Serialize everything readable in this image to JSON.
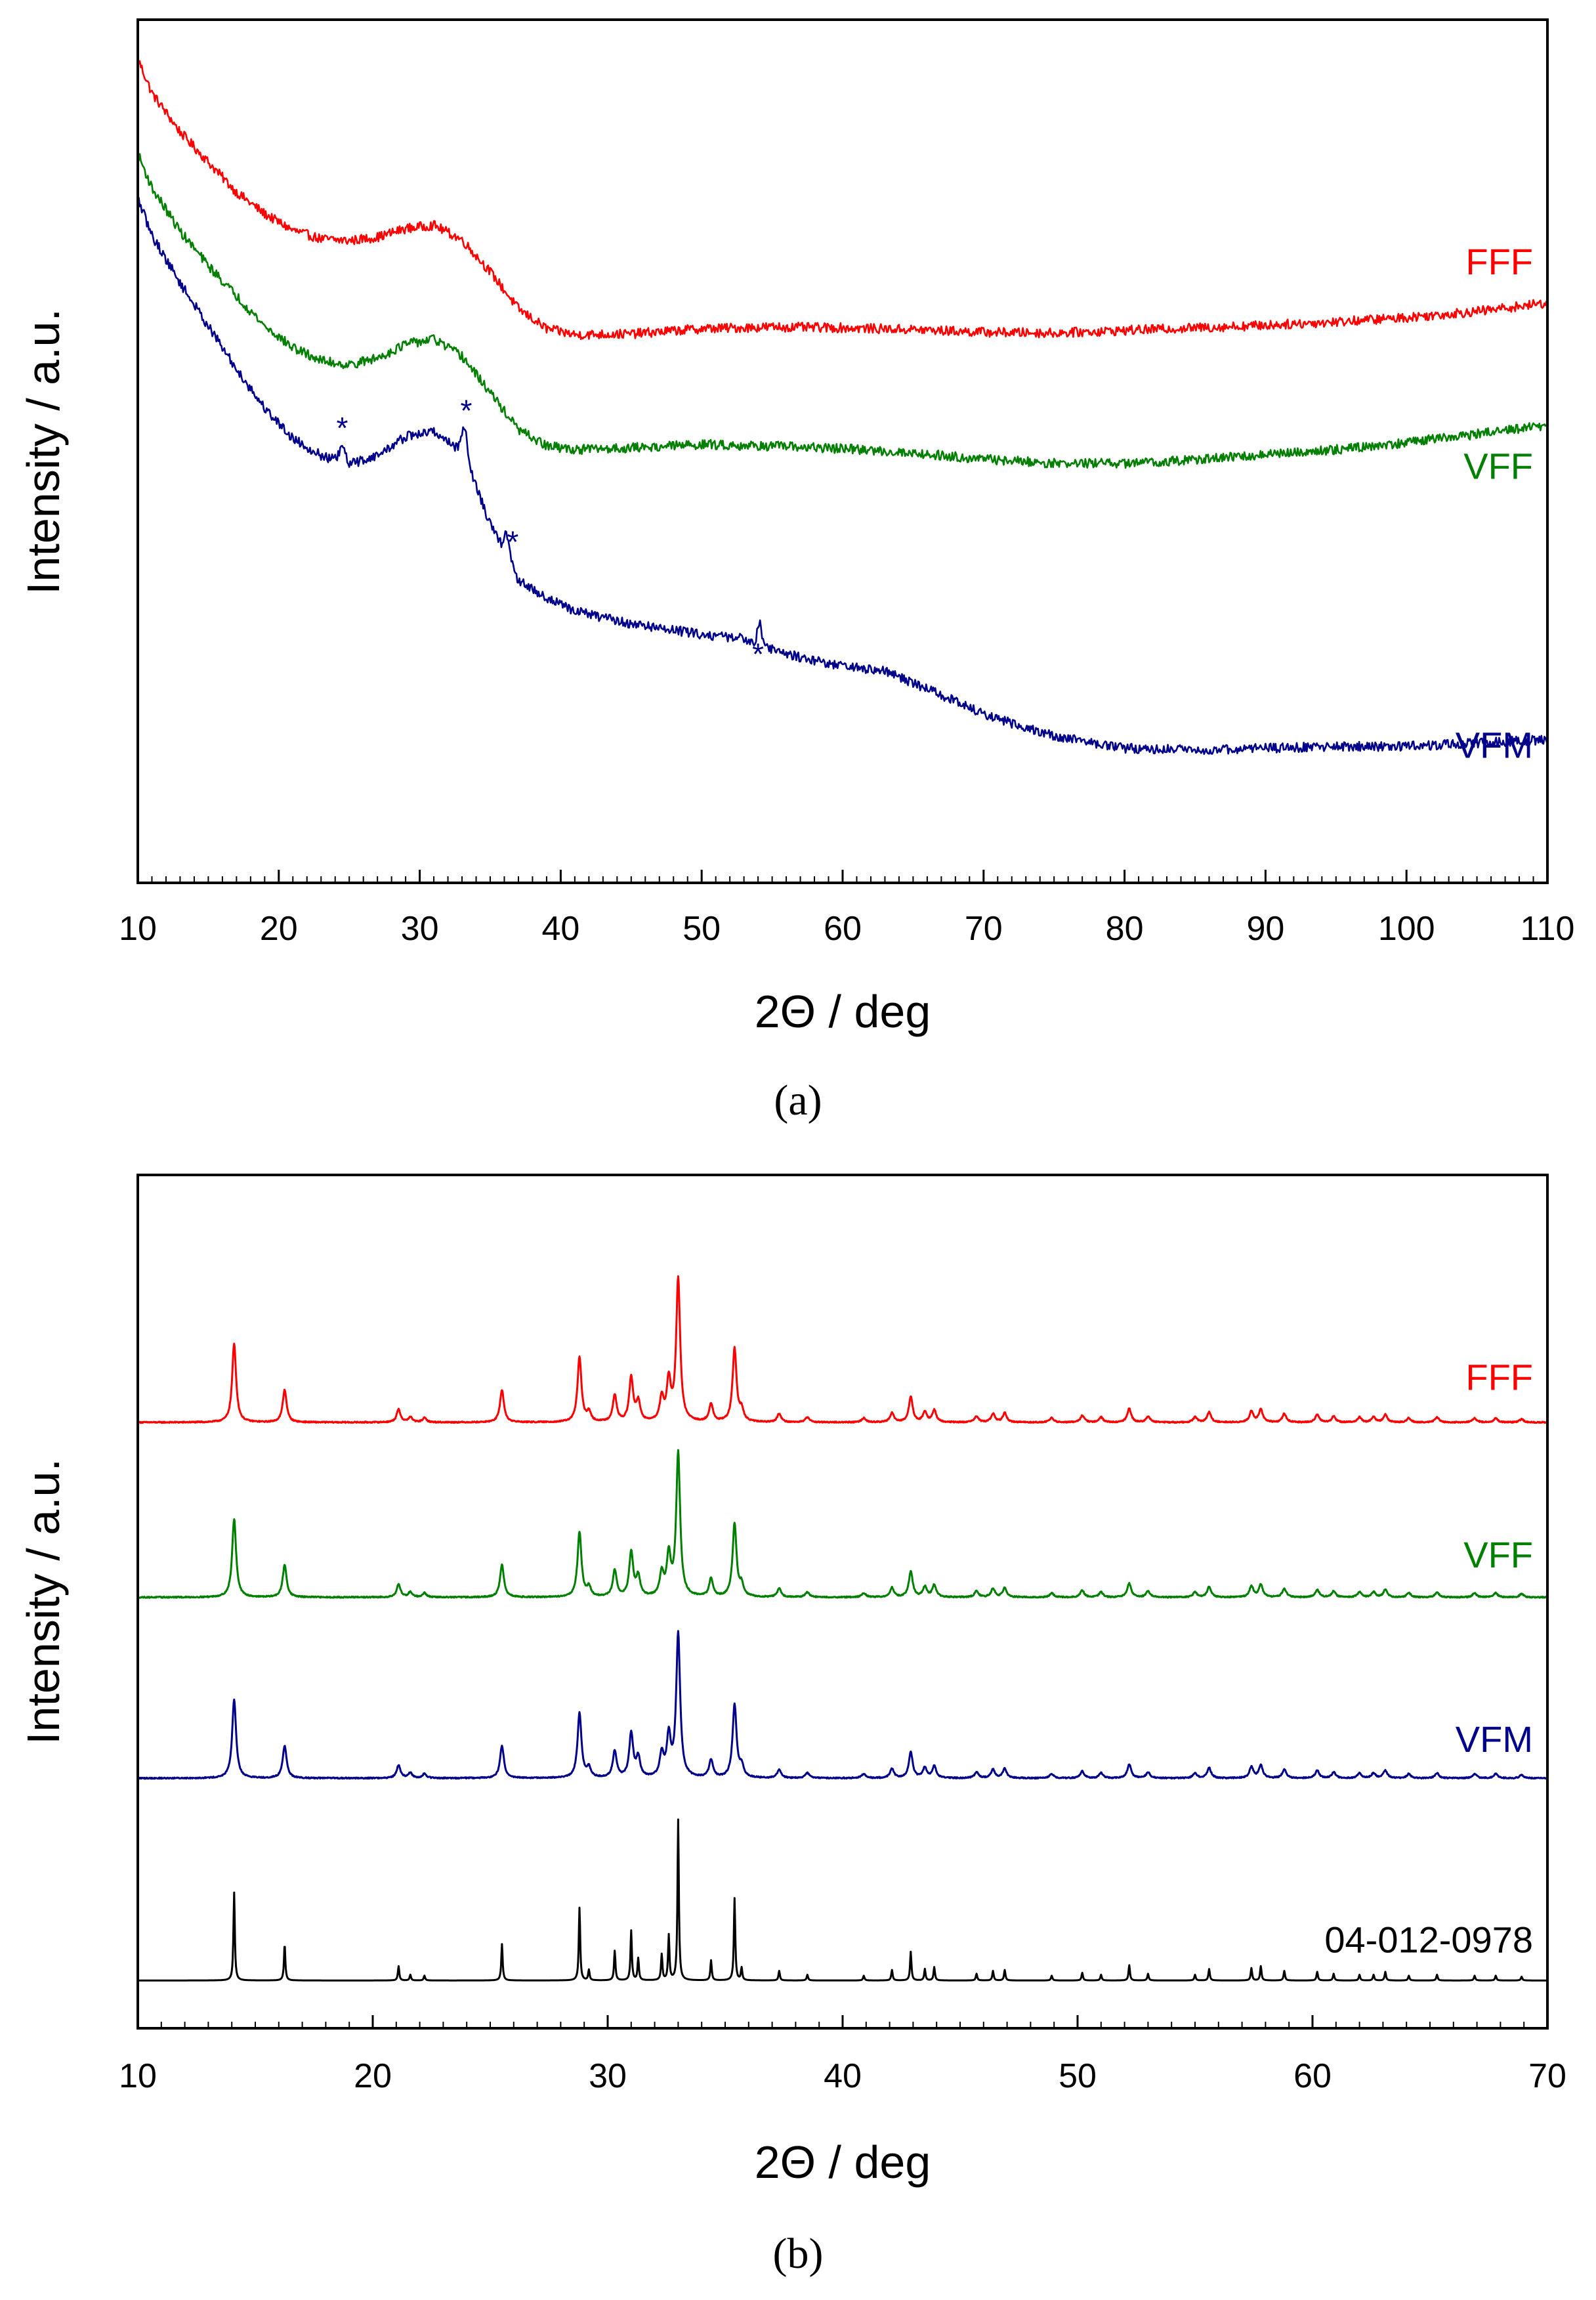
{
  "chart_data": [
    {
      "type": "line",
      "panel_label": "a",
      "caption": "(a)",
      "xlabel": "2Θ / deg",
      "ylabel": "Intensity / a.u.",
      "xlim": [
        10,
        110
      ],
      "ylim": [
        0,
        100
      ],
      "xticks": [
        10,
        20,
        30,
        40,
        50,
        60,
        70,
        80,
        90,
        100,
        110
      ],
      "xtick_labels": [
        "10",
        "20",
        "30",
        "40",
        "50",
        "60",
        "70",
        "80",
        "90",
        "100",
        "110"
      ],
      "series": [
        {
          "name": "FFF",
          "color": "#ff0000",
          "noise": 0.55,
          "points": [
            [
              10,
              95.5
            ],
            [
              11,
              91.5
            ],
            [
              13,
              87
            ],
            [
              15,
              83.5
            ],
            [
              17,
              80
            ],
            [
              19,
              77.5
            ],
            [
              21,
              75.6
            ],
            [
              23,
              74.6
            ],
            [
              25,
              74.4
            ],
            [
              27,
              74.8
            ],
            [
              29,
              75.8
            ],
            [
              31,
              76.2
            ],
            [
              33,
              74.5
            ],
            [
              35,
              70.8
            ],
            [
              37,
              66.5
            ],
            [
              39,
              64.2
            ],
            [
              41,
              63.5
            ],
            [
              45,
              63.6
            ],
            [
              50,
              64.2
            ],
            [
              55,
              64.4
            ],
            [
              60,
              64.3
            ],
            [
              65,
              64.1
            ],
            [
              70,
              63.8
            ],
            [
              75,
              63.7
            ],
            [
              80,
              64
            ],
            [
              85,
              64.3
            ],
            [
              90,
              64.6
            ],
            [
              95,
              65
            ],
            [
              100,
              65.5
            ],
            [
              105,
              66.2
            ],
            [
              110,
              67.2
            ]
          ]
        },
        {
          "name": "VFF",
          "color": "#007f00",
          "noise": 0.55,
          "points": [
            [
              10,
              84.5
            ],
            [
              11,
              80.5
            ],
            [
              13,
              75.5
            ],
            [
              15,
              71.5
            ],
            [
              17,
              68
            ],
            [
              19,
              64.5
            ],
            [
              21,
              62
            ],
            [
              23,
              60.5
            ],
            [
              25,
              60
            ],
            [
              27,
              60.8
            ],
            [
              29,
              62.4
            ],
            [
              31,
              63
            ],
            [
              33,
              61
            ],
            [
              35,
              56.8
            ],
            [
              37,
              52.5
            ],
            [
              39,
              50.6
            ],
            [
              41,
              50.2
            ],
            [
              45,
              50.4
            ],
            [
              50,
              50.8
            ],
            [
              55,
              50.6
            ],
            [
              60,
              50.3
            ],
            [
              65,
              49.8
            ],
            [
              70,
              49.1
            ],
            [
              75,
              48.6
            ],
            [
              80,
              48.6
            ],
            [
              85,
              49
            ],
            [
              90,
              49.6
            ],
            [
              95,
              50.2
            ],
            [
              100,
              51
            ],
            [
              105,
              52
            ],
            [
              110,
              53
            ]
          ]
        },
        {
          "name": "VFM",
          "color": "#00008b",
          "noise": 0.55,
          "points": [
            [
              10,
              79.3
            ],
            [
              11,
              75
            ],
            [
              13,
              69.5
            ],
            [
              15,
              64.5
            ],
            [
              17,
              59.5
            ],
            [
              19,
              55
            ],
            [
              21,
              51.5
            ],
            [
              23,
              49.5
            ],
            [
              25,
              48.5
            ],
            [
              27,
              49.5
            ],
            [
              29,
              51.7
            ],
            [
              31,
              52.3
            ],
            [
              33,
              50
            ],
            [
              34,
              46
            ],
            [
              35,
              41.5
            ],
            [
              36,
              38.5
            ],
            [
              37,
              35
            ],
            [
              39,
              33
            ],
            [
              41,
              31.5
            ],
            [
              45,
              30
            ],
            [
              50,
              28.8
            ],
            [
              53,
              28.3
            ],
            [
              56,
              26.5
            ],
            [
              60,
              25.1
            ],
            [
              63,
              24.5
            ],
            [
              66,
              22.5
            ],
            [
              70,
              19.5
            ],
            [
              75,
              17
            ],
            [
              80,
              15.6
            ],
            [
              85,
              15.4
            ],
            [
              90,
              15.6
            ],
            [
              95,
              15.8
            ],
            [
              100,
              15.8
            ],
            [
              105,
              16.2
            ],
            [
              110,
              16.6
            ]
          ]
        }
      ],
      "peaks": [
        {
          "series": "VFM",
          "x": 24.5,
          "h": 1.8,
          "w": 0.2
        },
        {
          "series": "VFM",
          "x": 33.2,
          "h": 3.6,
          "w": 0.2
        },
        {
          "series": "VFM",
          "x": 36.2,
          "h": 2.5,
          "w": 0.2
        },
        {
          "series": "VFM",
          "x": 54.1,
          "h": 2.6,
          "w": 0.15
        }
      ],
      "annotations": [
        {
          "text": "*",
          "x": 24.5,
          "y": 51.5,
          "color": "#00008b"
        },
        {
          "text": "*",
          "x": 33.3,
          "y": 53.5,
          "color": "#00008b"
        },
        {
          "text": "*",
          "x": 36.6,
          "y": 38.3,
          "color": "#00008b"
        },
        {
          "text": "*",
          "x": 54.0,
          "y": 25.3,
          "color": "#00008b"
        }
      ],
      "legend_labels": [
        {
          "text": "FFF",
          "color": "#ff0000",
          "y": 70.5
        },
        {
          "text": "VFF",
          "color": "#007f00",
          "y": 46.8
        },
        {
          "text": "VFM",
          "color": "#00008b",
          "y": 14.5
        }
      ]
    },
    {
      "type": "line",
      "panel_label": "b",
      "caption": "(b)",
      "xlabel": "2Θ / deg",
      "ylabel": "Intensity / a.u.",
      "xlim": [
        10,
        70
      ],
      "ylim": [
        0,
        100
      ],
      "xticks": [
        10,
        20,
        30,
        40,
        50,
        60,
        70
      ],
      "xtick_labels": [
        "10",
        "20",
        "30",
        "40",
        "50",
        "60",
        "70"
      ],
      "series": [
        {
          "name": "FFF",
          "color": "#ff0000",
          "baseline": 71,
          "gain": 1.0,
          "width": 0.1,
          "noise": 0.07
        },
        {
          "name": "VFF",
          "color": "#007f00",
          "baseline": 50.5,
          "gain": 1.0,
          "width": 0.1,
          "noise": 0.07
        },
        {
          "name": "VFM",
          "color": "#00008b",
          "baseline": 29.3,
          "gain": 1.0,
          "width": 0.1,
          "noise": 0.07
        },
        {
          "name": "04-012-0978",
          "color": "#000000",
          "baseline": 5.6,
          "gain": 1.12,
          "width": 0.035,
          "noise": 0
        }
      ],
      "reflections": [
        [
          14.1,
          9.2
        ],
        [
          16.25,
          3.8
        ],
        [
          21.1,
          1.5
        ],
        [
          21.6,
          0.6
        ],
        [
          22.2,
          0.5
        ],
        [
          25.5,
          3.8
        ],
        [
          28.8,
          7.6
        ],
        [
          29.2,
          1.1
        ],
        [
          30.3,
          3.1
        ],
        [
          31.0,
          5.2
        ],
        [
          31.3,
          2.3
        ],
        [
          32.3,
          2.7
        ],
        [
          32.6,
          4.7
        ],
        [
          33.0,
          16.8
        ],
        [
          34.4,
          2.1
        ],
        [
          35.4,
          8.6
        ],
        [
          35.7,
          1.3
        ],
        [
          37.3,
          1.0
        ],
        [
          38.5,
          0.6
        ],
        [
          40.9,
          0.5
        ],
        [
          42.1,
          1.1
        ],
        [
          42.9,
          3.0
        ],
        [
          43.5,
          1.2
        ],
        [
          43.9,
          1.4
        ],
        [
          45.7,
          0.7
        ],
        [
          46.4,
          1.0
        ],
        [
          46.9,
          1.1
        ],
        [
          48.9,
          0.5
        ],
        [
          50.2,
          0.8
        ],
        [
          51.0,
          0.6
        ],
        [
          52.2,
          1.6
        ],
        [
          53.0,
          0.7
        ],
        [
          55.0,
          0.6
        ],
        [
          55.6,
          1.2
        ],
        [
          57.4,
          1.3
        ],
        [
          57.8,
          1.5
        ],
        [
          58.8,
          1.0
        ],
        [
          60.2,
          0.9
        ],
        [
          60.9,
          0.7
        ],
        [
          62.0,
          0.6
        ],
        [
          62.6,
          0.6
        ],
        [
          63.1,
          0.9
        ],
        [
          64.1,
          0.5
        ],
        [
          65.3,
          0.6
        ],
        [
          66.9,
          0.5
        ],
        [
          67.8,
          0.5
        ],
        [
          68.9,
          0.4
        ]
      ],
      "legend_labels": [
        {
          "text": "FFF",
          "color": "#ff0000",
          "y": 74.8
        },
        {
          "text": "VFF",
          "color": "#007f00",
          "y": 54.0
        },
        {
          "text": "VFM",
          "color": "#00008b",
          "y": 32.4
        },
        {
          "text": "04-012-0978",
          "color": "#000000",
          "y": 8.9
        }
      ]
    }
  ]
}
